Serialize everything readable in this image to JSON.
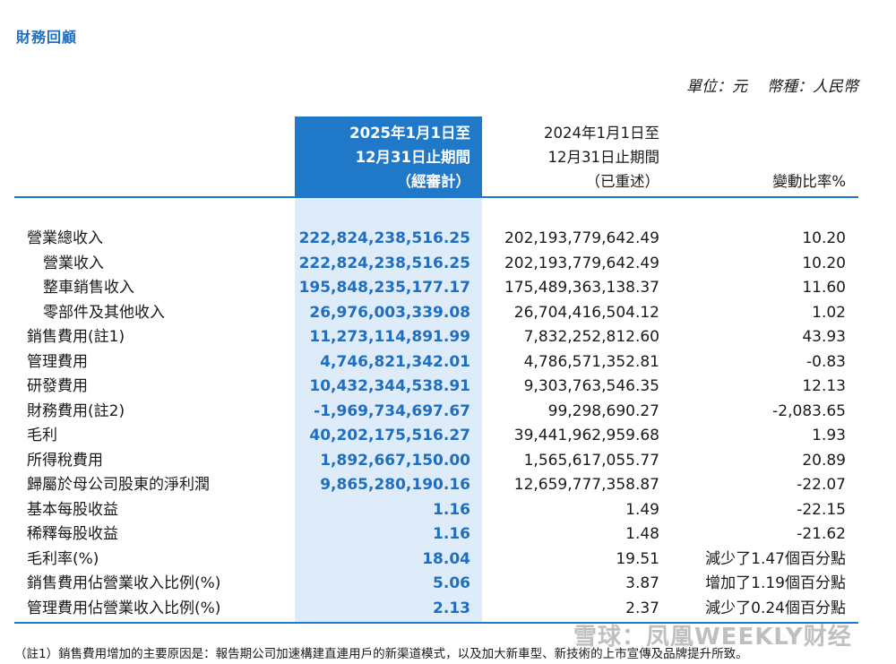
{
  "section_title": "財務回顧",
  "unit": {
    "unit_label": "單位：元",
    "currency_label": "幣種：人民幣"
  },
  "columns": {
    "current": [
      "2025年1月1日至",
      "12月31日止期間",
      "（經審計）"
    ],
    "prior": [
      "2024年1月1日至",
      "12月31日止期間",
      "（已重述）"
    ],
    "change": "變動比率%"
  },
  "rows": [
    {
      "label": "營業總收入",
      "v2025": "222,824,238,516.25",
      "v2024": "202,193,779,642.49",
      "change": "10.20",
      "indent": false
    },
    {
      "label": "營業收入",
      "v2025": "222,824,238,516.25",
      "v2024": "202,193,779,642.49",
      "change": "10.20",
      "indent": true
    },
    {
      "label": "整車銷售收入",
      "v2025": "195,848,235,177.17",
      "v2024": "175,489,363,138.37",
      "change": "11.60",
      "indent": true
    },
    {
      "label": "零部件及其他收入",
      "v2025": "26,976,003,339.08",
      "v2024": "26,704,416,504.12",
      "change": "1.02",
      "indent": true
    },
    {
      "label": "銷售費用(註1)",
      "v2025": "11,273,114,891.99",
      "v2024": "7,832,252,812.60",
      "change": "43.93",
      "indent": false
    },
    {
      "label": "管理費用",
      "v2025": "4,746,821,342.01",
      "v2024": "4,786,571,352.81",
      "change": "-0.83",
      "indent": false
    },
    {
      "label": "研發費用",
      "v2025": "10,432,344,538.91",
      "v2024": "9,303,763,546.35",
      "change": "12.13",
      "indent": false
    },
    {
      "label": "財務費用(註2)",
      "v2025": "-1,969,734,697.67",
      "v2024": "99,298,690.27",
      "change": "-2,083.65",
      "indent": false
    },
    {
      "label": "毛利",
      "v2025": "40,202,175,516.27",
      "v2024": "39,441,962,959.68",
      "change": "1.93",
      "indent": false
    },
    {
      "label": "所得稅費用",
      "v2025": "1,892,667,150.00",
      "v2024": "1,565,617,055.77",
      "change": "20.89",
      "indent": false
    },
    {
      "label": "歸屬於母公司股東的淨利潤",
      "v2025": "9,865,280,190.16",
      "v2024": "12,659,777,358.87",
      "change": "-22.07",
      "indent": false
    },
    {
      "label": "基本每股收益",
      "v2025": "1.16",
      "v2024": "1.49",
      "change": "-22.15",
      "indent": false
    },
    {
      "label": "稀釋每股收益",
      "v2025": "1.16",
      "v2024": "1.48",
      "change": "-21.62",
      "indent": false
    },
    {
      "label": "毛利率(%)",
      "v2025": "18.04",
      "v2024": "19.51",
      "change": "減少了1.47個百分點",
      "indent": false
    },
    {
      "label": "銷售費用佔營業收入比例(%)",
      "v2025": "5.06",
      "v2024": "3.87",
      "change": "增加了1.19個百分點",
      "indent": false
    },
    {
      "label": "管理費用佔營業收入比例(%)",
      "v2025": "2.13",
      "v2024": "2.37",
      "change": "減少了0.24個百分點",
      "indent": false
    }
  ],
  "footnote": "（註1）銷售費用增加的主要原因是：報告期公司加速構建直連用戶的新渠道模式，以及加大新車型、新技術的上市宣傳及品牌提升所致。",
  "watermark": "雪球：凤凰WEEKLY财经",
  "colors": {
    "accent": "#1f78c8",
    "highlight": "#deebf8",
    "title": "#1f6fc0"
  }
}
